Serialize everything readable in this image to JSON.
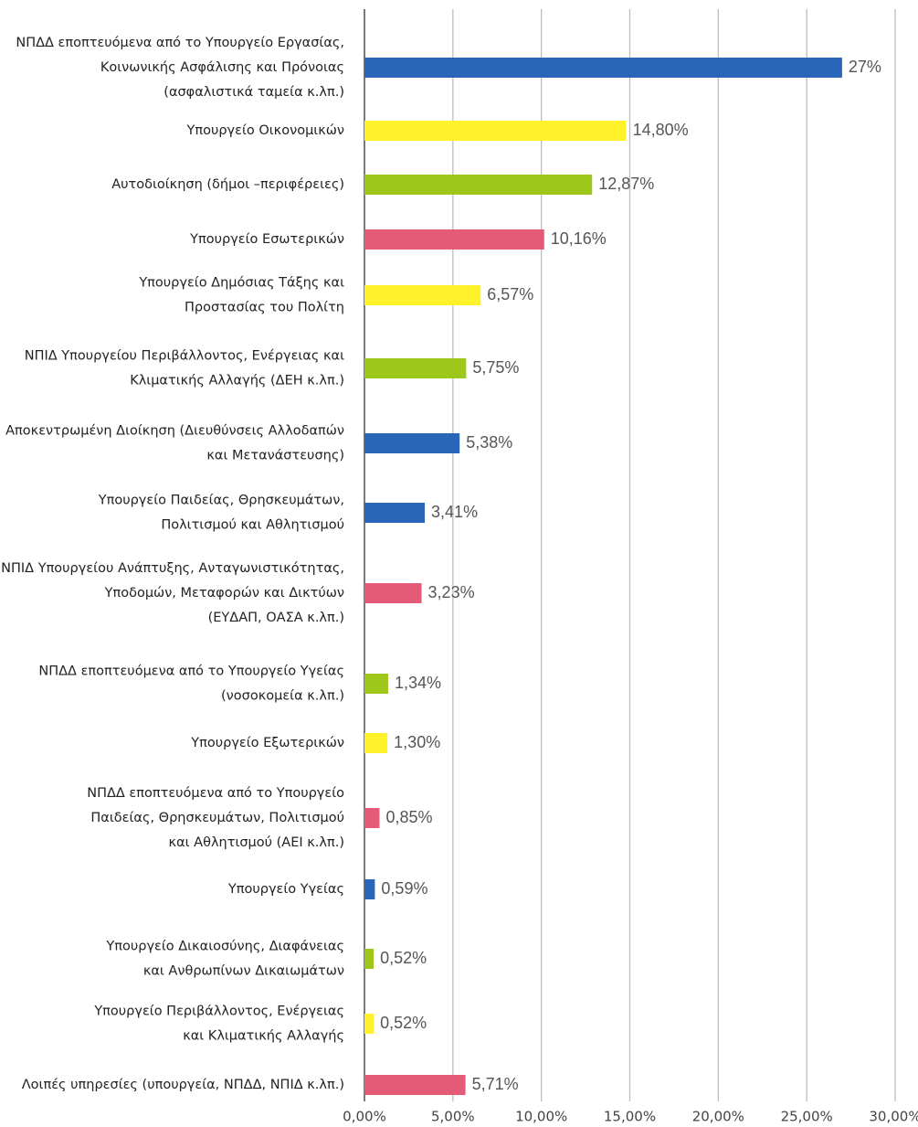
{
  "chart_data": {
    "type": "barh",
    "categories": [
      [
        "ΝΠΔΔ εποπτευόμενα από το Υπουργείο Εργασίας,",
        "Κοινωνικής Ασφάλισης και Πρόνοιας",
        "(ασφαλιστικά ταμεία κ.λπ.)"
      ],
      [
        "Υπουργείο Οικονομικών"
      ],
      [
        "Αυτοδιοίκηση (δήμοι –περιφέρειες)"
      ],
      [
        "Υπουργείο Εσωτερικών"
      ],
      [
        "Υπουργείο Δημόσιας Τάξης και",
        "Προστασίας του Πολίτη"
      ],
      [
        "ΝΠΙΔ Υπουργείου Περιβάλλοντος, Ενέργειας και",
        "Κλιματικής Αλλαγής (ΔΕΗ κ.λπ.)"
      ],
      [
        "Αποκεντρωμένη Διοίκηση (Διευθύνσεις Αλλοδαπών",
        "και Μετανάστευσης)"
      ],
      [
        "Υπουργείο Παιδείας, Θρησκευμάτων,",
        "Πολιτισμού και Αθλητισμού"
      ],
      [
        "ΝΠΙΔ Υπουργείου Ανάπτυξης, Ανταγωνιστικότητας,",
        "Υποδομών, Μεταφορών και Δικτύων",
        "(ΕΥΔΑΠ, ΟΑΣΑ κ.λπ.)"
      ],
      [
        "ΝΠΔΔ εποπτευόμενα από το Υπουργείο Υγείας",
        "(νοσοκομεία κ.λπ.)"
      ],
      [
        "Υπουργείο Εξωτερικών"
      ],
      [
        "ΝΠΔΔ εποπτευόμενα από το Υπουργείο",
        "Παιδείας, Θρησκευμάτων, Πολιτισμού",
        "και Αθλητισμού (ΑΕΙ κ.λπ.)"
      ],
      [
        "Υπουργείο Υγείας"
      ],
      [
        "Υπουργείο Δικαιοσύνης, Διαφάνειας",
        "και Ανθρωπίνων Δικαιωμάτων"
      ],
      [
        "Υπουργείο Περιβάλλοντος, Ενέργειας",
        "και Κλιματικής Αλλαγής"
      ],
      [
        "Λοιπές υπηρεσίες (υπουργεία, ΝΠΔΔ, ΝΠΙΔ κ.λπ.)"
      ]
    ],
    "values": [
      27,
      14.8,
      12.87,
      10.16,
      6.57,
      5.75,
      5.38,
      3.41,
      3.23,
      1.34,
      1.3,
      0.85,
      0.59,
      0.52,
      0.52,
      5.71
    ],
    "value_labels": [
      "27%",
      "14,80%",
      "12,87%",
      "10,16%",
      "6,57%",
      "5,75%",
      "5,38%",
      "3,41%",
      "3,23%",
      "1,34%",
      "1,30%",
      "0,85%",
      "0,59%",
      "0,52%",
      "0,52%",
      "5,71%"
    ],
    "colors": [
      "#2a66b8",
      "#fff22a",
      "#9dc81b",
      "#e45b77",
      "#fff22a",
      "#9dc81b",
      "#2a66b8",
      "#2a66b8",
      "#e45b77",
      "#9dc81b",
      "#fff22a",
      "#e45b77",
      "#2a66b8",
      "#9dc81b",
      "#fff22a",
      "#e45b77"
    ],
    "xlim": [
      0,
      30
    ],
    "xticks": [
      {
        "value": 0,
        "label": "0,00%"
      },
      {
        "value": 5,
        "label": "5,00%"
      },
      {
        "value": 10,
        "label": "10,00%"
      },
      {
        "value": 15,
        "label": "15,00%"
      },
      {
        "value": 20,
        "label": "20,00%"
      },
      {
        "value": 25,
        "label": "25,00%"
      },
      {
        "value": 30,
        "label": "30,00%"
      }
    ],
    "grid": true
  }
}
